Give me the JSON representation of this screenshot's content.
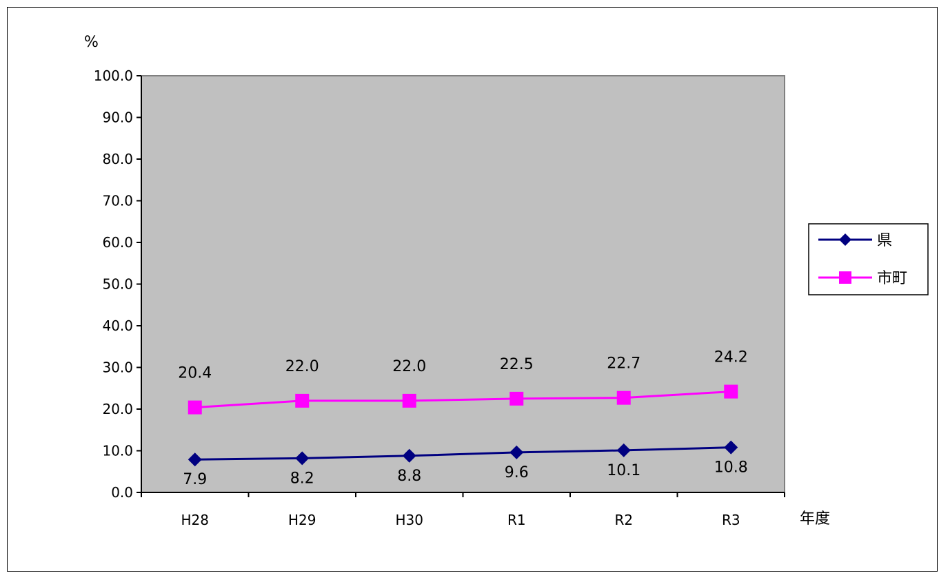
{
  "chart_data": {
    "type": "line",
    "ylabel": "%",
    "xlabel": "年度",
    "categories": [
      "H28",
      "H29",
      "H30",
      "R1",
      "R2",
      "R3"
    ],
    "ylim": [
      0,
      100
    ],
    "yticks": [
      "0.0",
      "10.0",
      "20.0",
      "30.0",
      "40.0",
      "50.0",
      "60.0",
      "70.0",
      "80.0",
      "90.0",
      "100.0"
    ],
    "series": [
      {
        "name": "県",
        "values": [
          7.9,
          8.2,
          8.8,
          9.6,
          10.1,
          10.8
        ],
        "labels": [
          "7.9",
          "8.2",
          "8.8",
          "9.6",
          "10.1",
          "10.8"
        ],
        "color": "#000080",
        "marker": "diamond"
      },
      {
        "name": "市町",
        "values": [
          20.4,
          22.0,
          22.0,
          22.5,
          22.7,
          24.2
        ],
        "labels": [
          "20.4",
          "22.0",
          "22.0",
          "22.5",
          "22.7",
          "24.2"
        ],
        "color": "#ff00ff",
        "marker": "square"
      }
    ],
    "plot_background": "#c0c0c0",
    "grid": false,
    "legend_position": "right"
  }
}
